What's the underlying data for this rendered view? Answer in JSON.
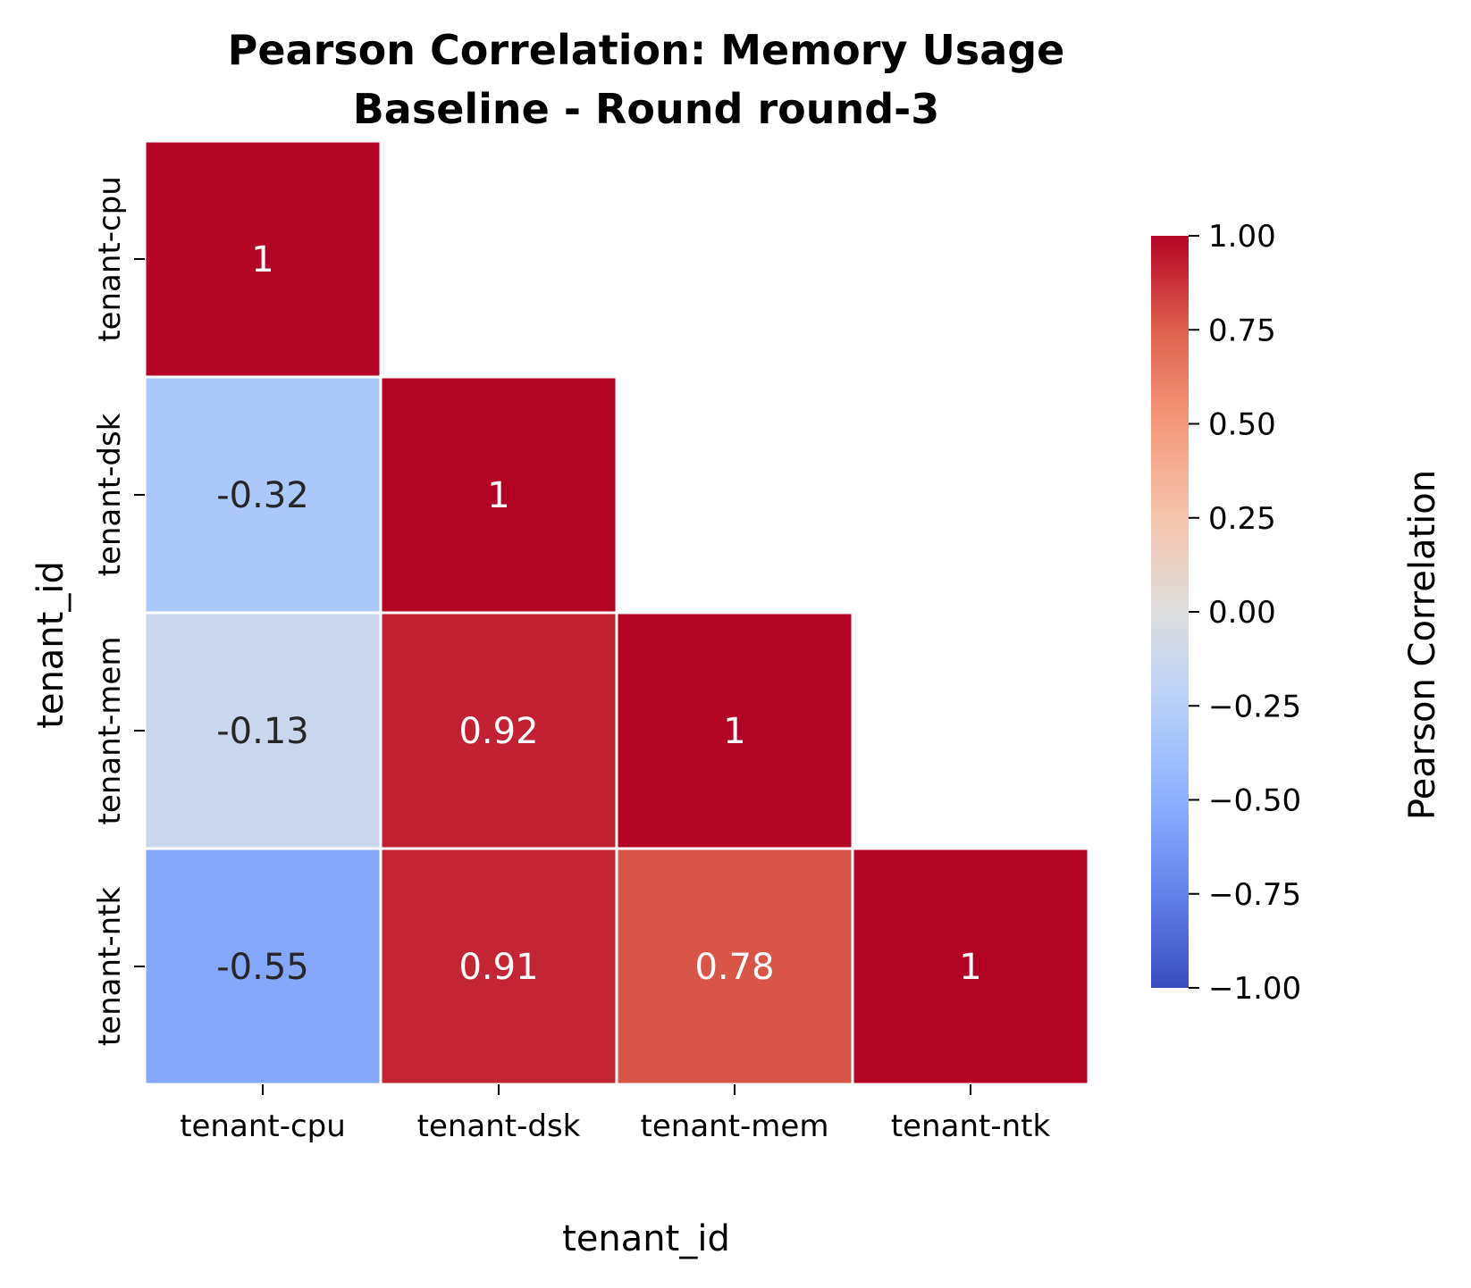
{
  "chart_data": {
    "type": "heatmap",
    "title": "Pearson Correlation: Memory Usage",
    "subtitle": "Baseline - Round round-3",
    "xlabel": "tenant_id",
    "ylabel": "tenant_id",
    "x_categories": [
      "tenant-cpu",
      "tenant-dsk",
      "tenant-mem",
      "tenant-ntk"
    ],
    "y_categories": [
      "tenant-cpu",
      "tenant-dsk",
      "tenant-mem",
      "tenant-ntk"
    ],
    "matrix": [
      [
        1,
        null,
        null,
        null
      ],
      [
        -0.32,
        1,
        null,
        null
      ],
      [
        -0.13,
        0.92,
        1,
        null
      ],
      [
        -0.55,
        0.91,
        0.78,
        1
      ]
    ],
    "cell_labels": [
      [
        "1",
        null,
        null,
        null
      ],
      [
        "-0.32",
        "1",
        null,
        null
      ],
      [
        "-0.13",
        "0.92",
        "1",
        null
      ],
      [
        "-0.55",
        "0.91",
        "0.78",
        "1"
      ]
    ],
    "mask": "upper-triangle",
    "colormap": "coolwarm",
    "color_range": [
      -1,
      1
    ],
    "colorbar": {
      "label": "Pearson Correlation",
      "ticks": [
        1,
        0.75,
        0.5,
        0.25,
        0,
        -0.25,
        -0.5,
        -0.75,
        -1
      ],
      "tick_labels": [
        "1.00",
        "0.75",
        "0.50",
        "0.25",
        "0.00",
        "−0.25",
        "−0.50",
        "−0.75",
        "−1.00"
      ],
      "placement": "right"
    },
    "grid": false
  }
}
